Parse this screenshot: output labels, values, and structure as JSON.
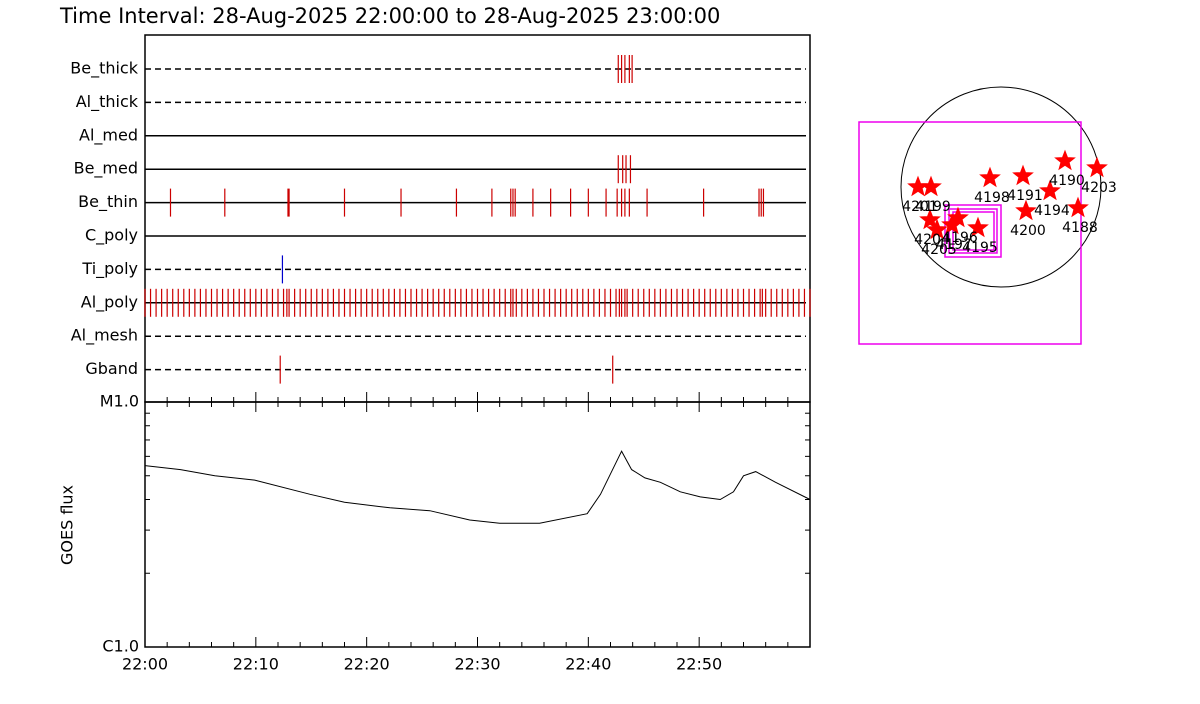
{
  "chart_data": [
    {
      "type": "event",
      "title": "Time Interval: 28-Aug-2025 22:00:00 to 28-Aug-2025 23:00:00",
      "xlim": [
        0,
        60
      ],
      "series": [
        {
          "name": "Be_thick",
          "line": "dashed",
          "color": "#cc0000",
          "x": [
            42.7,
            43.0,
            43.3,
            43.7,
            43.95
          ]
        },
        {
          "name": "Al_thick",
          "line": "dashed",
          "color": "#cc0000",
          "x": []
        },
        {
          "name": "Al_med",
          "line": "solid",
          "color": "#cc0000",
          "x": []
        },
        {
          "name": "Be_med",
          "line": "solid",
          "color": "#cc0000",
          "x": [
            42.7,
            43.1,
            43.4,
            43.8
          ]
        },
        {
          "name": "Be_thin",
          "line": "solid",
          "color": "#cc0000",
          "x": [
            2.3,
            7.2,
            12.9,
            13.0,
            18.0,
            23.1,
            28.1,
            31.3,
            33.0,
            33.2,
            33.4,
            35.0,
            36.6,
            38.4,
            40.0,
            41.6,
            42.6,
            43.0,
            43.3,
            43.7,
            45.3,
            50.4,
            55.4,
            55.6,
            55.8
          ]
        },
        {
          "name": "C_poly",
          "line": "solid",
          "color": "#cc0000",
          "x": []
        },
        {
          "name": "Ti_poly",
          "line": "dashed",
          "color": "#0000cc",
          "x": [
            12.4
          ]
        },
        {
          "name": "Al_poly",
          "line": "solid",
          "color": "#cc0000",
          "x": [
            0,
            0.5,
            1,
            1.5,
            2,
            2.5,
            3,
            3.5,
            4,
            4.5,
            5,
            5.5,
            6,
            6.5,
            7,
            7.5,
            8,
            8.5,
            9,
            9.5,
            10,
            10.5,
            11,
            11.5,
            12,
            12.5,
            12.8,
            13,
            13.5,
            14,
            14.5,
            15,
            15.5,
            16,
            16.5,
            17,
            17.5,
            18,
            18.5,
            19,
            19.5,
            20,
            20.5,
            21,
            21.5,
            22,
            22.5,
            23,
            23.5,
            24,
            24.5,
            25,
            25.5,
            26,
            26.5,
            27,
            27.5,
            28,
            28.5,
            29,
            29.5,
            30,
            30.5,
            31,
            31.5,
            32,
            32.5,
            33,
            33.2,
            33.5,
            34,
            34.5,
            35,
            35.5,
            36,
            36.5,
            37,
            37.5,
            38,
            38.5,
            39,
            39.5,
            40,
            40.5,
            41,
            41.5,
            42,
            42.5,
            42.8,
            43,
            43.3,
            43.5,
            44,
            44.5,
            45,
            45.5,
            46,
            46.5,
            47,
            47.5,
            48,
            48.5,
            49,
            49.5,
            50,
            50.5,
            51,
            51.5,
            52,
            52.5,
            53,
            53.5,
            54,
            54.5,
            55,
            55.5,
            55.7,
            56,
            56.5,
            57,
            57.5,
            58,
            58.5,
            59,
            59.5,
            60
          ]
        },
        {
          "name": "Al_mesh",
          "line": "dashed",
          "color": "#cc0000",
          "x": []
        },
        {
          "name": "Gband",
          "line": "dashed",
          "color": "#cc0000",
          "x": [
            12.2,
            42.2
          ]
        }
      ]
    },
    {
      "type": "line",
      "y_label": "GOES flux",
      "log_scale": true,
      "color": "#000000",
      "xlim": [
        0,
        60
      ],
      "xticks": [
        {
          "value": 0,
          "label": "22:00"
        },
        {
          "value": 10,
          "label": "22:10"
        },
        {
          "value": 20,
          "label": "22:20"
        },
        {
          "value": 30,
          "label": "22:30"
        },
        {
          "value": 40,
          "label": "22:40"
        },
        {
          "value": 50,
          "label": "22:50"
        }
      ],
      "minor_xticks": [
        2,
        4,
        6,
        8,
        12,
        14,
        16,
        18,
        22,
        24,
        26,
        28,
        32,
        34,
        36,
        38,
        42,
        44,
        46,
        48,
        52,
        54,
        56,
        58
      ],
      "ylim": [
        1e-06,
        1e-05
      ],
      "yticks": [
        {
          "value": 1e-06,
          "label": "C1.0"
        },
        {
          "value": 1e-05,
          "label": "M1.0"
        }
      ],
      "minor_yticks": [
        2e-06,
        3e-06,
        4e-06,
        5e-06,
        6e-06,
        7e-06,
        8e-06,
        9e-06
      ],
      "x": [
        0,
        3.2,
        6.3,
        9.9,
        14.9,
        18.0,
        22.1,
        25.7,
        29.3,
        32.0,
        35.6,
        39.9,
        41.1,
        43.0,
        43.9,
        45.1,
        46.5,
        48.3,
        50.1,
        51.9,
        53.1,
        54.0,
        55.1,
        56.9,
        60
      ],
      "values": [
        5.5e-06,
        5.3e-06,
        5e-06,
        4.8e-06,
        4.2e-06,
        3.9e-06,
        3.7e-06,
        3.6e-06,
        3.3e-06,
        3.2e-06,
        3.2e-06,
        3.5e-06,
        4.2e-06,
        6.3e-06,
        5.3e-06,
        4.9e-06,
        4.7e-06,
        4.3e-06,
        4.1e-06,
        4e-06,
        4.3e-06,
        5e-06,
        5.2e-06,
        4.7e-06,
        4e-06
      ]
    }
  ],
  "map": {
    "labels": [
      "4201",
      "4199",
      "4198",
      "4191",
      "4190",
      "4203",
      "4194",
      "4200",
      "4188",
      "4204",
      "4205",
      "4196",
      "4197",
      "4195"
    ]
  }
}
